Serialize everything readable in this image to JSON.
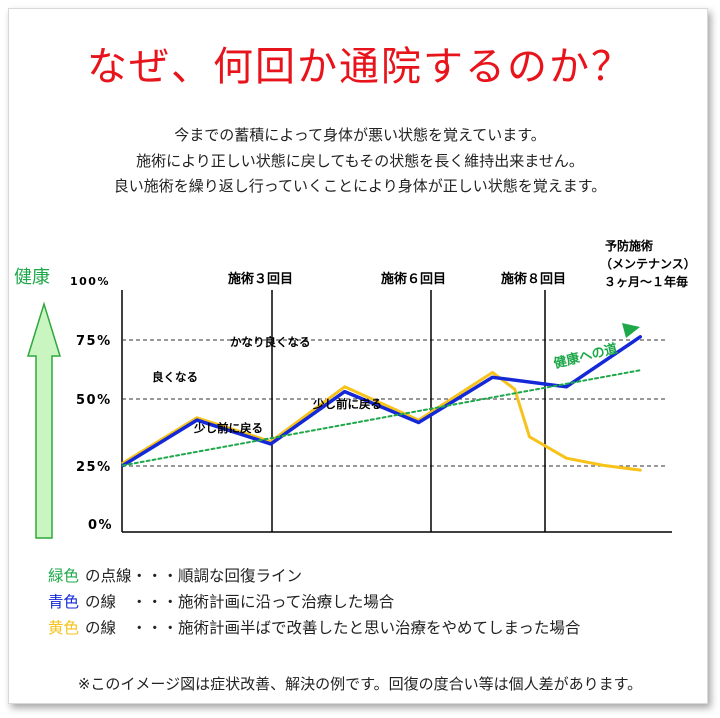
{
  "title": "なぜ、何回か通院するのか？",
  "intro": [
    "今までの蓄積によって身体が悪い状態を覚えています。",
    "施術により正しい状態に戻してもその状態を長く維持出来ません。",
    "良い施術を繰り返し行っていくことにより身体が正しい状態を覚えます。"
  ],
  "colors": {
    "title": "#e8141c",
    "green": "#1ea84a",
    "blue": "#1428d8",
    "yellow": "#f7c21a",
    "arrow_fill": "#c9f5c0",
    "arrow_stroke": "#2ea83a"
  },
  "chart_data": {
    "type": "line",
    "health_label": "健康",
    "ylabel": "100%",
    "ylim": [
      0,
      100
    ],
    "y_ticks": [
      "75%",
      "50%",
      "25%",
      "0%"
    ],
    "x_markers": [
      "施術３回目",
      "施術６回目",
      "施術８回目"
    ],
    "maintenance_label": [
      "予防施術",
      "（メンテナンス）",
      "３ヶ月～１年毎"
    ],
    "trend_label": "健康への道",
    "annotations": [
      "良くなる",
      "少し前に戻る",
      "かなり良くなる",
      "少し前に戻る"
    ],
    "series": [
      {
        "color": "blue",
        "x": [
          0,
          1,
          2,
          3,
          4,
          5,
          6,
          7
        ],
        "y": [
          28,
          47,
          37,
          59,
          46,
          65,
          61,
          82
        ]
      },
      {
        "color": "yellow",
        "x": [
          0,
          1,
          2,
          3,
          4,
          5,
          5.3,
          5.5,
          6,
          6.5,
          7
        ],
        "y": [
          29,
          48,
          38,
          61,
          47,
          67,
          60,
          40,
          31,
          28,
          26
        ]
      },
      {
        "color": "green",
        "style": "dotted",
        "x": [
          0,
          7
        ],
        "y": [
          28,
          68
        ]
      }
    ]
  },
  "legend": [
    {
      "color_word": "緑色",
      "color": "green",
      "text": "の点線・・・順調な回復ライン"
    },
    {
      "color_word": "青色",
      "color": "blue",
      "text": "の線　・・・施術計画に沿って治療した場合"
    },
    {
      "color_word": "黄色",
      "color": "yellow",
      "text": "の線　・・・施術計画半ばで改善したと思い治療をやめてしまった場合"
    }
  ],
  "note": "※このイメージ図は症状改善、解決の例です。回復の度合い等は個人差があります。"
}
